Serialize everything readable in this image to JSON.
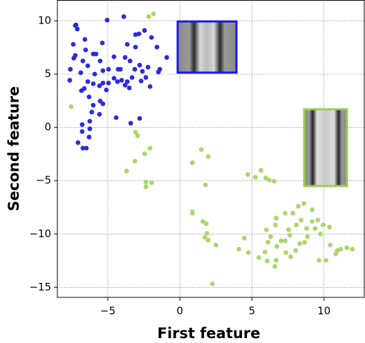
{
  "chart_data": {
    "type": "scatter",
    "x_label": "First feature",
    "y_label": "Second feature",
    "xlim": [
      -8.5,
      12.8
    ],
    "ylim": [
      -15.95,
      11.95
    ],
    "xticks": [
      {
        "value": -5,
        "label": "−5"
      },
      0,
      5,
      10
    ],
    "yticks": [
      {
        "value": -15,
        "label": "−15"
      },
      {
        "value": -10,
        "label": "−10"
      },
      {
        "value": -5,
        "label": "−5"
      },
      0,
      5,
      10
    ],
    "grid": true,
    "series": [
      {
        "color": "#2b2be0",
        "x": [
          -7.26,
          -7.12,
          -7.21,
          -7.4,
          -6.59,
          -5.05,
          -3.89,
          -6.54,
          -7.26,
          -7.36,
          -7.6,
          -6.73,
          -6.39,
          -5.82,
          -5.38,
          -6.01,
          -5.91,
          -5.34,
          -5.53,
          -4.95,
          -4.57,
          -4.13,
          -3.8,
          -3.46,
          -3.65,
          -3.08,
          -2.84,
          -2.45,
          -1.97,
          -1.59,
          -0.91,
          -1.39,
          -2.21,
          -2.6,
          -2.79,
          -2.36,
          -2.07,
          -2.69,
          -3.32,
          -3.51,
          -3.8,
          -4.04,
          -4.28,
          -4.57,
          -4.95,
          -5.34,
          -5.58,
          -6.01,
          -6.39,
          -6.88,
          -6.83,
          -6.3,
          -5.53,
          -5.34,
          -6.01,
          -6.11,
          -5.58,
          -6.25,
          -6.78,
          -6.78,
          -6.25,
          -7.07,
          -6.73,
          -6.49,
          -6.3,
          -4.42,
          -3.41,
          -2.79,
          -7.64,
          -6.63,
          -5.1,
          -4.33,
          -3.65,
          -3.13,
          -3.08,
          -1.49
        ],
        "y": [
          9.55,
          9.22,
          9.61,
          7.79,
          8.25,
          10.06,
          10.39,
          7.27,
          6.75,
          6.49,
          5.45,
          6.23,
          5.78,
          6.88,
          7.92,
          6.88,
          5.0,
          5.32,
          6.23,
          5.45,
          6.62,
          5.45,
          6.56,
          6.23,
          7.79,
          8.7,
          8.77,
          9.09,
          8.44,
          7.53,
          6.56,
          5.45,
          5.65,
          5.26,
          5.84,
          4.68,
          3.83,
          4.35,
          4.68,
          3.7,
          3.96,
          4.42,
          5.45,
          4.61,
          4.16,
          4.16,
          3.9,
          4.09,
          4.29,
          5.13,
          3.44,
          2.86,
          2.47,
          2.21,
          2.08,
          1.43,
          1.23,
          0.58,
          0.26,
          -0.39,
          -0.13,
          -1.43,
          -1.95,
          -1.95,
          -0.91,
          0.91,
          0.39,
          0.84,
          4.42,
          3.64,
          3.51,
          4.29,
          4.29,
          5.45,
          7.53,
          5.19
        ]
      },
      {
        "color": "#a9d76b",
        "x": [
          -7.55,
          -2.16,
          -1.83,
          -3.08,
          -2.93,
          -2.45,
          -2.07,
          -3.13,
          -3.7,
          -2.36,
          -2.36,
          -1.97,
          1.49,
          1.97,
          0.87,
          1.78,
          0.87,
          0.87,
          1.59,
          1.83,
          1.88,
          1.97,
          1.73,
          2.5,
          2.26,
          4.71,
          5.63,
          5.24,
          6.2,
          6.54,
          5.96,
          4.47,
          4.76,
          4.09,
          5.48,
          6.06,
          6.68,
          6.11,
          6.01,
          6.68,
          6.63,
          7.31,
          7.55,
          7.31,
          7.84,
          8.22,
          8.61,
          9.18,
          8.41,
          8.8,
          8.65,
          9.18,
          9.57,
          9.38,
          9.76,
          9.95,
          10.38,
          10.14,
          9.66,
          10.43,
          10.91,
          11.15,
          11.59,
          11.97,
          10.82,
          8.32,
          7.64,
          8.08,
          8.85,
          7.69,
          8.03,
          7.02,
          7.36,
          6.73,
          6.59,
          5.91,
          6.3
        ],
        "y": [
          1.95,
          10.39,
          10.65,
          -0.45,
          -0.78,
          -2.47,
          -1.95,
          -3.18,
          -4.09,
          -5.13,
          -5.58,
          -5.19,
          -2.08,
          -2.73,
          -3.31,
          -5.39,
          -7.92,
          -8.05,
          -8.83,
          -9.03,
          -9.94,
          -10.58,
          -10.32,
          -11.04,
          -14.68,
          -4.42,
          -4.03,
          -4.68,
          -4.94,
          -5.06,
          -4.74,
          -10.39,
          -11.75,
          -11.43,
          -12.21,
          -12.53,
          -12.47,
          -10.78,
          -9.61,
          -8.51,
          -9.16,
          -10.65,
          -9.61,
          -8.05,
          -8.05,
          -7.4,
          -7.14,
          -7.73,
          -8.7,
          -9.48,
          -10.78,
          -8.83,
          -8.7,
          -9.48,
          -10.0,
          -9.16,
          -9.35,
          -12.47,
          -12.47,
          -11.04,
          -11.56,
          -11.43,
          -11.3,
          -11.43,
          -11.88,
          -10.91,
          -10.13,
          -9.16,
          -10.26,
          -12.14,
          -11.56,
          -10.65,
          -11.75,
          -11.17,
          -13.05,
          -11.69,
          -10.26
        ]
      }
    ]
  }
}
